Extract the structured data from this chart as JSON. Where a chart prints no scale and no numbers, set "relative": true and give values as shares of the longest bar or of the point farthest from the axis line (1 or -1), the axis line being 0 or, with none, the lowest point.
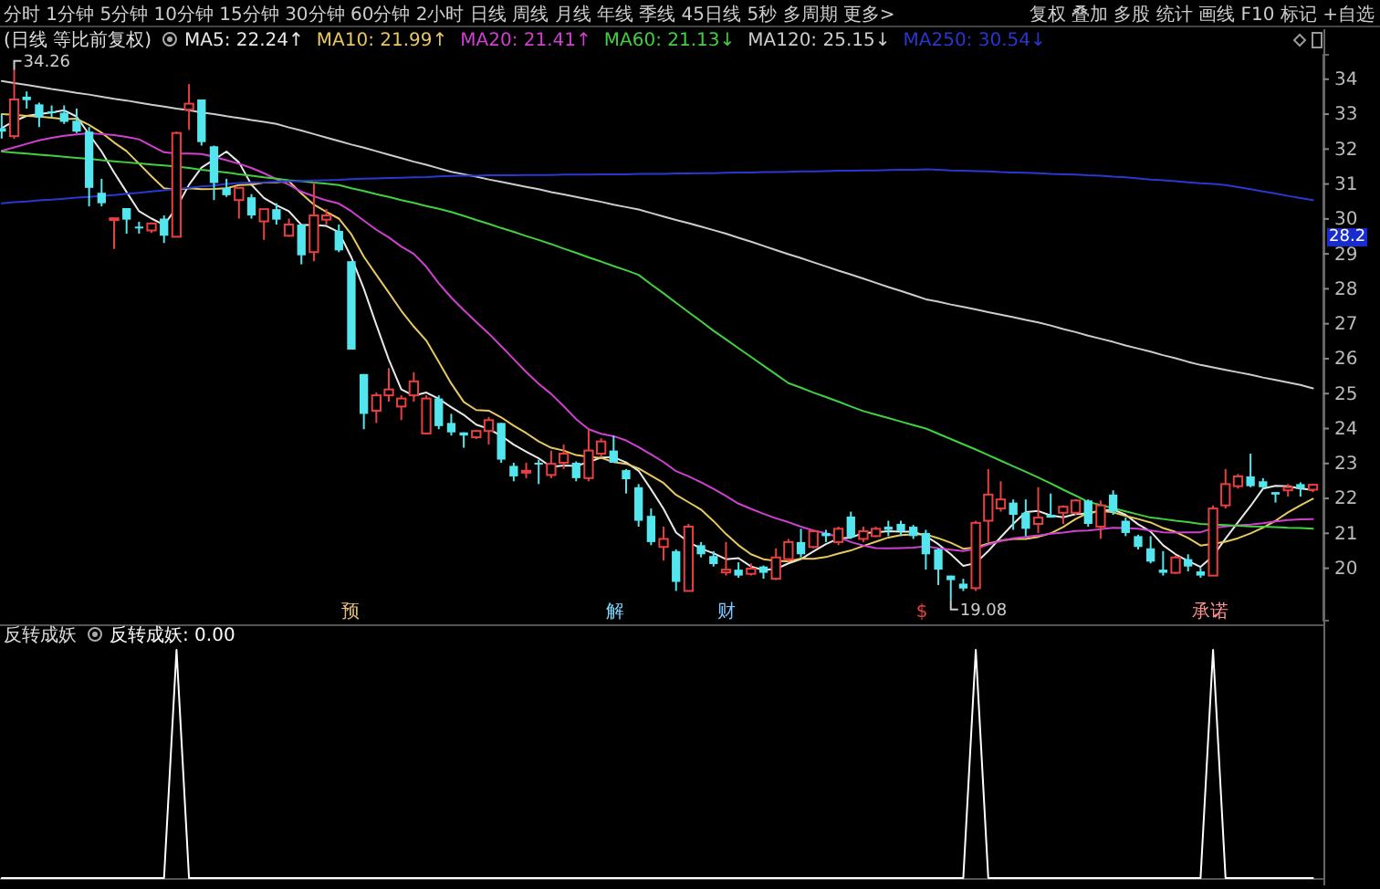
{
  "chart_data": [
    {
      "type": "candlestick",
      "title": "(日线 等比前复权)",
      "legend": "top left",
      "categories": [
        null,
        null,
        null,
        null,
        null,
        null,
        null,
        null,
        null,
        null,
        null,
        null,
        null,
        null,
        null,
        null,
        null,
        null,
        null,
        null,
        null,
        null,
        null,
        null,
        null,
        null,
        null,
        null,
        null,
        null,
        null,
        null,
        null,
        null,
        null,
        null,
        null,
        null,
        null,
        null,
        null,
        null,
        null,
        null,
        null,
        null,
        null,
        null,
        null,
        null,
        null,
        null,
        null,
        null,
        null,
        null,
        null,
        null,
        null,
        null,
        null,
        null,
        null,
        null,
        null,
        null,
        null,
        null,
        null,
        null,
        null,
        null,
        null,
        null,
        null,
        null,
        null,
        null,
        null,
        null,
        null,
        null,
        null,
        null,
        null,
        null,
        null,
        null,
        null,
        null,
        null,
        null,
        null,
        null,
        null,
        null,
        null,
        null,
        null,
        null,
        null,
        null,
        null,
        null,
        null,
        null
      ],
      "ohlc": [
        [
          32.6,
          33.0,
          32.3,
          32.5
        ],
        [
          32.37,
          34.26,
          32.29,
          33.42
        ],
        [
          33.5,
          33.65,
          33.16,
          33.4
        ],
        [
          33.28,
          33.33,
          32.63,
          32.9
        ],
        [
          33.08,
          33.25,
          32.9,
          33.05
        ],
        [
          33.04,
          33.25,
          32.72,
          32.78
        ],
        [
          32.81,
          33.16,
          32.46,
          32.5
        ],
        [
          32.5,
          32.63,
          30.36,
          30.89
        ],
        [
          30.75,
          31.15,
          30.36,
          30.45
        ],
        [
          29.99,
          30.03,
          29.14,
          30.02
        ],
        [
          30.31,
          30.31,
          29.58,
          29.98
        ],
        [
          29.78,
          29.92,
          29.58,
          29.75
        ],
        [
          29.67,
          29.9,
          29.6,
          29.87
        ],
        [
          30.01,
          30.1,
          29.31,
          29.52
        ],
        [
          29.49,
          32.5,
          29.49,
          32.46
        ],
        [
          33.13,
          33.86,
          32.55,
          33.3
        ],
        [
          33.42,
          33.42,
          32.1,
          32.2
        ],
        [
          32.08,
          32.1,
          30.54,
          31.03
        ],
        [
          30.89,
          31.15,
          30.63,
          30.68
        ],
        [
          30.54,
          30.89,
          30.01,
          30.89
        ],
        [
          30.62,
          30.71,
          30.01,
          30.1
        ],
        [
          29.93,
          30.28,
          29.4,
          30.28
        ],
        [
          30.28,
          30.45,
          29.84,
          29.98
        ],
        [
          29.52,
          30.01,
          29.49,
          29.84
        ],
        [
          29.84,
          29.84,
          28.7,
          28.96
        ],
        [
          29.05,
          31.06,
          28.79,
          30.1
        ],
        [
          29.98,
          30.28,
          29.84,
          30.1
        ],
        [
          29.66,
          29.84,
          29.05,
          29.1
        ],
        [
          28.79,
          28.79,
          26.26,
          26.26
        ],
        [
          25.56,
          25.56,
          23.98,
          24.42
        ],
        [
          24.51,
          25.03,
          24.16,
          24.95
        ],
        [
          24.95,
          25.73,
          24.77,
          25.12
        ],
        [
          24.63,
          24.95,
          24.24,
          24.86
        ],
        [
          24.95,
          25.61,
          24.77,
          25.35
        ],
        [
          23.86,
          24.95,
          23.86,
          24.86
        ],
        [
          24.86,
          24.95,
          23.98,
          24.07
        ],
        [
          24.16,
          24.42,
          23.8,
          23.89
        ],
        [
          23.89,
          23.89,
          23.45,
          23.8
        ],
        [
          23.75,
          23.95,
          23.7,
          23.93
        ],
        [
          23.93,
          24.33,
          23.54,
          24.24
        ],
        [
          24.16,
          24.16,
          23.02,
          23.11
        ],
        [
          22.93,
          23.02,
          22.49,
          22.63
        ],
        [
          22.75,
          23.02,
          22.58,
          22.79
        ],
        [
          23.02,
          23.11,
          22.41,
          22.99
        ],
        [
          22.67,
          23.37,
          22.58,
          22.99
        ],
        [
          23.02,
          23.54,
          22.84,
          23.28
        ],
        [
          23.02,
          23.06,
          22.49,
          22.58
        ],
        [
          22.58,
          23.98,
          22.49,
          23.37
        ],
        [
          23.28,
          23.72,
          23.19,
          23.63
        ],
        [
          23.37,
          23.8,
          23.02,
          23.02
        ],
        [
          22.81,
          22.84,
          22.14,
          22.55
        ],
        [
          22.32,
          22.41,
          21.19,
          21.36
        ],
        [
          21.5,
          21.71,
          20.66,
          20.75
        ],
        [
          20.61,
          21.19,
          20.22,
          20.84
        ],
        [
          20.49,
          20.54,
          19.35,
          19.61
        ],
        [
          19.35,
          21.27,
          19.35,
          21.19
        ],
        [
          20.66,
          20.75,
          20.31,
          20.4
        ],
        [
          20.35,
          20.49,
          20.05,
          20.12
        ],
        [
          19.88,
          20.75,
          19.79,
          19.96
        ],
        [
          19.96,
          20.17,
          19.73,
          19.79
        ],
        [
          19.84,
          20.14,
          19.79,
          19.99
        ],
        [
          20.05,
          20.08,
          19.7,
          19.87
        ],
        [
          19.7,
          20.57,
          19.66,
          20.31
        ],
        [
          20.26,
          20.84,
          20.19,
          20.75
        ],
        [
          20.75,
          21.13,
          20.31,
          20.4
        ],
        [
          20.61,
          21.1,
          20.57,
          21.06
        ],
        [
          21.01,
          21.1,
          20.75,
          20.92
        ],
        [
          20.75,
          21.19,
          20.66,
          21.13
        ],
        [
          21.48,
          21.62,
          20.84,
          20.89
        ],
        [
          20.84,
          21.19,
          20.75,
          21.06
        ],
        [
          20.92,
          21.19,
          20.89,
          21.13
        ],
        [
          21.19,
          21.36,
          20.92,
          21.1
        ],
        [
          21.27,
          21.36,
          20.92,
          21.06
        ],
        [
          21.19,
          21.24,
          20.84,
          20.92
        ],
        [
          21.01,
          21.1,
          19.96,
          20.4
        ],
        [
          20.54,
          20.57,
          19.52,
          19.96
        ],
        [
          19.79,
          19.79,
          19.08,
          19.66
        ],
        [
          19.56,
          19.7,
          19.35,
          19.42
        ],
        [
          19.43,
          21.36,
          19.35,
          21.3
        ],
        [
          21.36,
          22.84,
          20.75,
          22.11
        ],
        [
          21.71,
          22.49,
          21.62,
          21.97
        ],
        [
          21.88,
          21.97,
          21.1,
          21.53
        ],
        [
          21.59,
          21.97,
          20.92,
          21.13
        ],
        [
          21.27,
          22.32,
          21.01,
          21.45
        ],
        [
          21.53,
          22.14,
          21.45,
          21.45
        ],
        [
          21.59,
          21.8,
          21.27,
          21.76
        ],
        [
          21.59,
          21.97,
          21.53,
          21.94
        ],
        [
          21.94,
          21.97,
          21.19,
          21.27
        ],
        [
          21.19,
          21.94,
          20.84,
          21.8
        ],
        [
          22.11,
          22.23,
          21.53,
          21.62
        ],
        [
          21.36,
          21.45,
          20.92,
          21.01
        ],
        [
          20.92,
          20.96,
          20.54,
          20.61
        ],
        [
          20.57,
          20.92,
          20.14,
          20.19
        ],
        [
          19.96,
          20.49,
          19.79,
          19.87
        ],
        [
          19.87,
          20.36,
          19.84,
          20.31
        ],
        [
          20.26,
          20.4,
          19.91,
          20.05
        ],
        [
          19.91,
          20.01,
          19.73,
          19.79
        ],
        [
          19.79,
          21.8,
          19.79,
          21.71
        ],
        [
          21.8,
          22.84,
          21.71,
          22.41
        ],
        [
          22.35,
          22.7,
          22.28,
          22.63
        ],
        [
          22.63,
          23.28,
          22.32,
          22.35
        ],
        [
          22.49,
          22.58,
          22.28,
          22.32
        ],
        [
          22.18,
          22.18,
          21.88,
          22.11
        ],
        [
          22.23,
          22.41,
          22.05,
          22.32
        ],
        [
          22.41,
          22.46,
          22.05,
          22.28
        ],
        [
          22.25,
          22.41,
          22.18,
          22.39
        ]
      ],
      "series": [
        {
          "type": "line",
          "name": "MA5: 22.24↑",
          "color": "#e8e8e8",
          "values": [
            32.6,
            32.8,
            32.95,
            33.0,
            33.05,
            33.11,
            32.93,
            32.42,
            31.93,
            31.33,
            30.77,
            30.22,
            30.01,
            29.83,
            30.32,
            30.98,
            31.47,
            31.7,
            31.93,
            31.62,
            30.98,
            30.6,
            30.39,
            30.22,
            29.83,
            29.83,
            29.8,
            29.62,
            28.9,
            28.0,
            26.97,
            25.97,
            25.12,
            24.94,
            25.03,
            24.85,
            24.61,
            24.39,
            24.11,
            23.99,
            23.79,
            23.54,
            23.34,
            23.15,
            22.9,
            22.94,
            22.93,
            23.04,
            23.17,
            23.18,
            23.03,
            22.79,
            22.26,
            21.7,
            21.02,
            20.75,
            20.56,
            20.43,
            20.26,
            20.29,
            20.05,
            19.95,
            19.98,
            20.14,
            20.26,
            20.48,
            20.69,
            20.85,
            20.88,
            21.01,
            21.03,
            21.06,
            21.05,
            21.05,
            20.92,
            20.69,
            20.4,
            20.07,
            20.15,
            20.49,
            20.89,
            21.27,
            21.61,
            21.64,
            21.51,
            21.46,
            21.55,
            21.57,
            21.64,
            21.68,
            21.53,
            21.26,
            21.05,
            20.66,
            20.4,
            20.21,
            20.04,
            20.35,
            20.85,
            21.32,
            21.78,
            22.28,
            22.36,
            22.35,
            22.28,
            22.24
          ]
        },
        {
          "type": "line",
          "name": "MA10: 21.99↑",
          "color": "#e8c860",
          "values": [
            33.0,
            32.98,
            32.95,
            32.93,
            32.9,
            32.86,
            32.87,
            32.69,
            32.47,
            32.19,
            31.94,
            31.58,
            31.22,
            30.88,
            30.83,
            30.88,
            30.85,
            30.86,
            30.88,
            30.97,
            30.98,
            31.04,
            31.05,
            31.08,
            30.73,
            30.41,
            30.2,
            30.01,
            29.56,
            28.92,
            28.4,
            27.89,
            27.37,
            26.92,
            26.52,
            25.91,
            25.29,
            24.76,
            24.53,
            24.51,
            24.32,
            24.08,
            23.87,
            23.63,
            23.45,
            23.37,
            23.24,
            23.19,
            23.16,
            23.04,
            22.99,
            22.86,
            22.65,
            22.44,
            22.1,
            21.89,
            21.68,
            21.35,
            20.98,
            20.66,
            20.4,
            20.26,
            20.21,
            20.2,
            20.28,
            20.27,
            20.32,
            20.42,
            20.51,
            20.64,
            20.76,
            20.88,
            20.95,
            20.97,
            20.97,
            20.86,
            20.73,
            20.56,
            20.6,
            20.71,
            20.79,
            20.84,
            20.84,
            20.9,
            21.0,
            21.18,
            21.41,
            21.59,
            21.64,
            21.6,
            21.5,
            21.41,
            21.31,
            21.15,
            21.04,
            20.87,
            20.65,
            20.7,
            20.76,
            20.86,
            21.0,
            21.16,
            21.36,
            21.6,
            21.8,
            21.99
          ]
        },
        {
          "type": "line",
          "name": "MA20: 21.41↑",
          "color": "#d040d0",
          "values": [
            31.95,
            32.05,
            32.15,
            32.25,
            32.32,
            32.38,
            32.42,
            32.45,
            32.43,
            32.4,
            32.35,
            32.28,
            32.09,
            31.91,
            31.87,
            31.87,
            31.86,
            31.78,
            31.68,
            31.58,
            31.46,
            31.31,
            31.14,
            30.98,
            30.78,
            30.65,
            30.53,
            30.44,
            30.22,
            29.95,
            29.69,
            29.47,
            29.21,
            29.0,
            28.63,
            28.16,
            27.75,
            27.39,
            27.05,
            26.72,
            26.36,
            25.99,
            25.62,
            25.28,
            24.99,
            24.64,
            24.27,
            23.98,
            23.85,
            23.78,
            23.66,
            23.47,
            23.26,
            23.04,
            22.78,
            22.63,
            22.46,
            22.27,
            22.07,
            21.85,
            21.7,
            21.56,
            21.43,
            21.32,
            21.19,
            21.08,
            21.0,
            20.89,
            20.75,
            20.65,
            20.58,
            20.57,
            20.58,
            20.59,
            20.63,
            20.57,
            20.53,
            20.49,
            20.56,
            20.68,
            20.78,
            20.86,
            20.9,
            20.94,
            20.99,
            21.02,
            21.07,
            21.08,
            21.12,
            21.16,
            21.15,
            21.13,
            21.08,
            21.03,
            21.02,
            21.03,
            21.03,
            21.15,
            21.2,
            21.23,
            21.25,
            21.29,
            21.34,
            21.38,
            21.4,
            21.41
          ]
        },
        {
          "type": "line",
          "name": "MA60: 21.13↓",
          "color": "#40d040",
          "values": [
            31.93,
            31.9,
            31.87,
            31.84,
            31.81,
            31.78,
            31.75,
            31.72,
            31.68,
            31.65,
            31.62,
            31.59,
            31.56,
            31.53,
            31.5,
            31.46,
            31.41,
            31.37,
            31.33,
            31.28,
            31.24,
            31.19,
            31.15,
            31.11,
            31.08,
            31.04,
            31.01,
            30.97,
            30.88,
            30.8,
            30.71,
            30.63,
            30.54,
            30.46,
            30.37,
            30.29,
            30.2,
            30.09,
            29.97,
            29.86,
            29.74,
            29.63,
            29.51,
            29.4,
            29.28,
            29.15,
            29.03,
            28.9,
            28.78,
            28.65,
            28.53,
            28.4,
            28.13,
            27.87,
            27.6,
            27.33,
            27.07,
            26.8,
            26.55,
            26.3,
            26.05,
            25.8,
            25.55,
            25.3,
            25.17,
            25.03,
            24.9,
            24.77,
            24.63,
            24.5,
            24.4,
            24.3,
            24.2,
            24.1,
            24.0,
            23.85,
            23.7,
            23.55,
            23.4,
            23.24,
            23.08,
            22.92,
            22.76,
            22.6,
            22.43,
            22.25,
            22.08,
            21.9,
            21.81,
            21.72,
            21.63,
            21.54,
            21.45,
            21.41,
            21.36,
            21.32,
            21.27,
            21.25,
            21.24,
            21.22,
            21.2,
            21.19,
            21.18,
            21.16,
            21.15,
            21.13
          ]
        },
        {
          "type": "line",
          "name": "MA120: 25.15↓",
          "color": "#cccccc",
          "values": [
            33.95,
            33.89,
            33.84,
            33.78,
            33.72,
            33.67,
            33.61,
            33.56,
            33.5,
            33.44,
            33.39,
            33.33,
            33.27,
            33.22,
            33.16,
            33.11,
            33.05,
            33.0,
            32.94,
            32.89,
            32.83,
            32.78,
            32.72,
            32.62,
            32.53,
            32.43,
            32.33,
            32.23,
            32.13,
            32.04,
            31.94,
            31.84,
            31.74,
            31.64,
            31.55,
            31.45,
            31.35,
            31.28,
            31.21,
            31.13,
            31.06,
            30.99,
            30.92,
            30.85,
            30.77,
            30.7,
            30.63,
            30.56,
            30.49,
            30.41,
            30.34,
            30.27,
            30.17,
            30.07,
            29.97,
            29.88,
            29.78,
            29.68,
            29.58,
            29.46,
            29.35,
            29.23,
            29.11,
            28.99,
            28.88,
            28.76,
            28.64,
            28.52,
            28.41,
            28.29,
            28.17,
            28.05,
            27.94,
            27.82,
            27.7,
            27.63,
            27.55,
            27.48,
            27.41,
            27.33,
            27.26,
            27.19,
            27.11,
            27.04,
            26.95,
            26.85,
            26.76,
            26.66,
            26.57,
            26.48,
            26.38,
            26.29,
            26.2,
            26.1,
            26.01,
            25.91,
            25.82,
            25.75,
            25.68,
            25.61,
            25.54,
            25.46,
            25.39,
            25.32,
            25.25,
            25.15
          ]
        },
        {
          "type": "line",
          "name": "MA250: 30.54↓",
          "color": "#2838d0",
          "values": [
            30.45,
            30.48,
            30.5,
            30.53,
            30.55,
            30.58,
            30.61,
            30.63,
            30.66,
            30.68,
            30.72,
            30.75,
            30.79,
            30.82,
            30.86,
            30.89,
            30.93,
            30.96,
            31.0,
            31.03,
            31.04,
            31.05,
            31.07,
            31.08,
            31.09,
            31.1,
            31.11,
            31.12,
            31.14,
            31.15,
            31.16,
            31.17,
            31.18,
            31.19,
            31.2,
            31.22,
            31.23,
            31.24,
            31.24,
            31.25,
            31.25,
            31.25,
            31.26,
            31.26,
            31.26,
            31.27,
            31.27,
            31.27,
            31.28,
            31.28,
            31.28,
            31.29,
            31.29,
            31.29,
            31.3,
            31.3,
            31.31,
            31.31,
            31.32,
            31.33,
            31.33,
            31.34,
            31.34,
            31.35,
            31.36,
            31.36,
            31.37,
            31.38,
            31.38,
            31.39,
            31.39,
            31.4,
            31.41,
            31.41,
            31.42,
            31.41,
            31.39,
            31.38,
            31.37,
            31.36,
            31.34,
            31.33,
            31.32,
            31.31,
            31.29,
            31.28,
            31.27,
            31.25,
            31.24,
            31.21,
            31.19,
            31.16,
            31.13,
            31.11,
            31.08,
            31.05,
            31.02,
            31.0,
            30.97,
            30.91,
            30.85,
            30.79,
            30.73,
            30.66,
            30.6,
            30.54
          ]
        }
      ],
      "ylim": [
        18.5,
        34.7
      ],
      "yticks": [
        20,
        21,
        22,
        23,
        24,
        25,
        26,
        27,
        28,
        29,
        30,
        31,
        32,
        33,
        34
      ],
      "annotations": [
        "分时 1分钟 5分钟 10分钟 15分钟 30分钟 60分钟 2小时 日线 周线 月线 年线 季线 45日线 5秒 多周期 更多>",
        "复权 叠加 多股 统计 画线 F10 标记 +自选",
        "34.26",
        "19.08",
        "28.2",
        "预",
        "解",
        "财",
        "$",
        "承诺"
      ]
    },
    {
      "type": "line",
      "title": "反转成妖",
      "legend": "top left",
      "relative": true,
      "categories": [
        null,
        null,
        null,
        null,
        null,
        null,
        null,
        null,
        null,
        null,
        null,
        null,
        null,
        null,
        null,
        null,
        null,
        null,
        null,
        null,
        null,
        null,
        null,
        null,
        null,
        null,
        null,
        null,
        null,
        null,
        null,
        null,
        null,
        null,
        null,
        null,
        null,
        null,
        null,
        null,
        null,
        null,
        null,
        null,
        null,
        null,
        null,
        null,
        null,
        null,
        null,
        null,
        null,
        null,
        null,
        null,
        null,
        null,
        null,
        null,
        null,
        null,
        null,
        null,
        null,
        null,
        null,
        null,
        null,
        null,
        null,
        null,
        null,
        null,
        null,
        null,
        null,
        null,
        null,
        null,
        null,
        null,
        null,
        null,
        null,
        null,
        null,
        null,
        null,
        null,
        null,
        null,
        null,
        null,
        null,
        null,
        null,
        null,
        null,
        null,
        null,
        null,
        null,
        null,
        null,
        null
      ],
      "series": [
        {
          "name": "反转成妖: 0.00",
          "color": "#ffffff",
          "values": [
            0,
            0,
            0,
            0,
            0,
            0,
            0,
            0,
            0,
            0,
            0,
            0,
            0,
            0,
            1,
            0,
            0,
            0,
            0,
            0,
            0,
            0,
            0,
            0,
            0,
            0,
            0,
            0,
            0,
            0,
            0,
            0,
            0,
            0,
            0,
            0,
            0,
            0,
            0,
            0,
            0,
            0,
            0,
            0,
            0,
            0,
            0,
            0,
            0,
            0,
            0,
            0,
            0,
            0,
            0,
            0,
            0,
            0,
            0,
            0,
            0,
            0,
            0,
            0,
            0,
            0,
            0,
            0,
            0,
            0,
            0,
            0,
            0,
            0,
            0,
            0,
            0,
            0,
            1,
            0,
            0,
            0,
            0,
            0,
            0,
            0,
            0,
            0,
            0,
            0,
            0,
            0,
            0,
            0,
            0,
            0,
            0,
            1,
            0,
            0,
            0,
            0,
            0,
            0,
            0,
            0
          ]
        }
      ]
    }
  ]
}
